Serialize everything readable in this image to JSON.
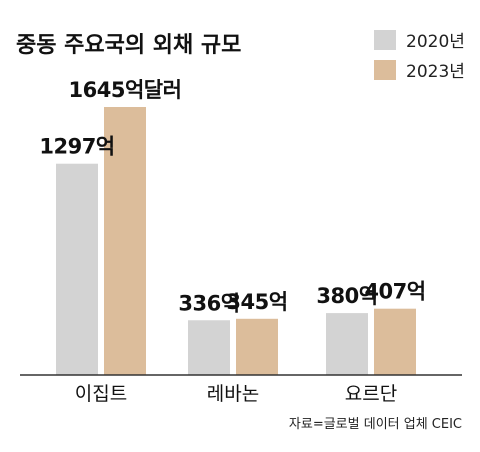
{
  "chart_data": {
    "type": "bar",
    "title": "중동 주요국의 외채 규모",
    "categories": [
      "이집트",
      "레바논",
      "요르단"
    ],
    "series": [
      {
        "name": "2020년",
        "values": [
          1297,
          336,
          380
        ],
        "labels": [
          "1297억",
          "336억",
          "380억"
        ],
        "color": "#d3d3d3"
      },
      {
        "name": "2023년",
        "values": [
          1645,
          345,
          407
        ],
        "labels": [
          "1645억달러",
          "345억",
          "407억"
        ],
        "color": "#dcbd9b"
      }
    ],
    "xlabel": "",
    "ylabel": "",
    "ylim": [
      0,
      1645
    ],
    "grid": false,
    "legend_position": "top-right",
    "source": "자료=글로벌 데이터 업체 CEIC"
  }
}
